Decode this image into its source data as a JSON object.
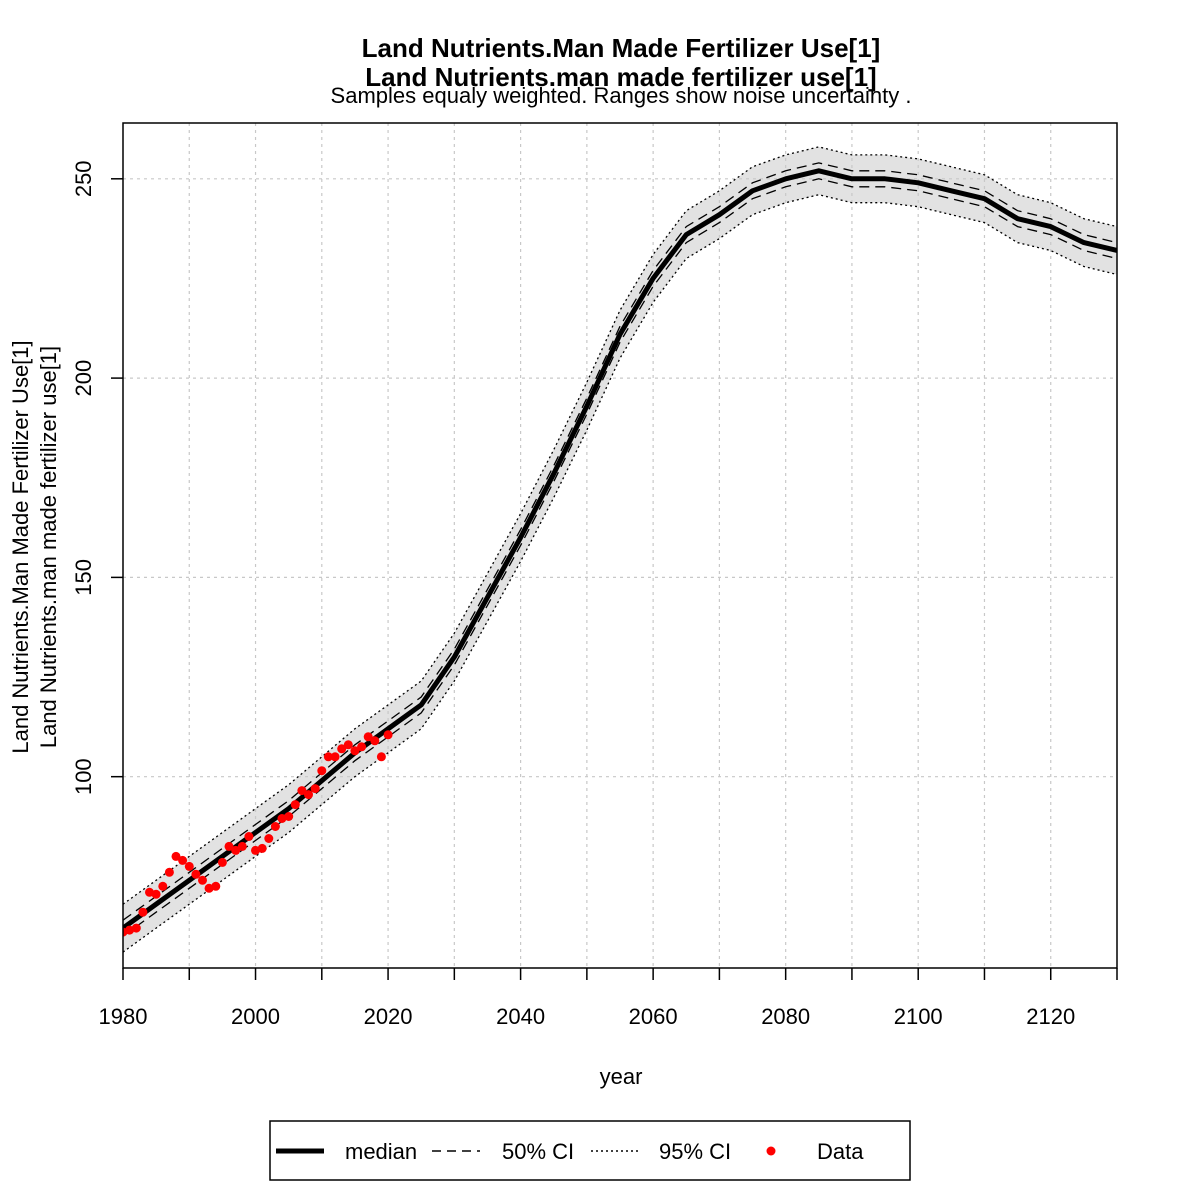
{
  "chart_data": {
    "type": "line",
    "title_line1": "Land Nutrients.Man Made Fertilizer Use[1]",
    "title_line2": "Land Nutrients.man made fertilizer use[1]",
    "subtitle": "Samples equaly weighted. Ranges show  noise uncertainty .",
    "xlabel": "year",
    "ylabel_line1": "Land Nutrients.Man Made Fertilizer Use[1]",
    "ylabel_line2": "Land Nutrients.man made fertilizer use[1]",
    "xlim": [
      1980,
      2130
    ],
    "ylim": [
      52,
      264
    ],
    "x_ticks": [
      1980,
      2000,
      2020,
      2040,
      2060,
      2080,
      2100,
      2120
    ],
    "x_minor_ticks": [
      1990,
      2010,
      2030,
      2050,
      2070,
      2090,
      2110,
      2130
    ],
    "y_ticks": [
      100,
      150,
      200,
      250
    ],
    "grid": true,
    "legend": {
      "placement": "bottom",
      "items": [
        {
          "label": "median",
          "style": "solid-thick"
        },
        {
          "label": "50% CI",
          "style": "dashed"
        },
        {
          "label": "95% CI",
          "style": "dotted"
        },
        {
          "label": "Data",
          "style": "point",
          "color": "#ff0000"
        }
      ]
    },
    "colors": {
      "band": "#e2e2e2",
      "line": "#000000",
      "data": "#ff0000",
      "grid": "#c8c8c8"
    },
    "series": [
      {
        "name": "median",
        "x": [
          1980,
          1985,
          1990,
          1995,
          2000,
          2005,
          2010,
          2015,
          2020,
          2025,
          2030,
          2035,
          2040,
          2045,
          2050,
          2055,
          2060,
          2065,
          2070,
          2075,
          2080,
          2085,
          2090,
          2095,
          2100,
          2105,
          2110,
          2115,
          2120,
          2125,
          2130
        ],
        "y": [
          62,
          68,
          74,
          80,
          86,
          92,
          99,
          106,
          112,
          118,
          130,
          145,
          160,
          176,
          193,
          211,
          225,
          236,
          241,
          247,
          250,
          252,
          250,
          250,
          249,
          247,
          245,
          240,
          238,
          234,
          232
        ]
      },
      {
        "name": "50% CI",
        "x": [
          1980,
          1985,
          1990,
          1995,
          2000,
          2005,
          2010,
          2015,
          2020,
          2025,
          2030,
          2035,
          2040,
          2045,
          2050,
          2055,
          2060,
          2065,
          2070,
          2075,
          2080,
          2085,
          2090,
          2095,
          2100,
          2105,
          2110,
          2115,
          2120,
          2125,
          2130
        ],
        "lower": [
          60,
          66,
          72,
          78,
          84,
          90,
          97,
          104,
          110,
          116,
          128,
          143,
          158,
          174,
          191,
          209,
          223,
          234,
          239,
          245,
          248,
          250,
          248,
          248,
          247,
          245,
          243,
          238,
          236,
          232,
          230
        ],
        "upper": [
          64,
          70,
          76,
          82,
          88,
          94,
          101,
          108,
          114,
          120,
          132,
          147,
          162,
          178,
          195,
          213,
          227,
          238,
          243,
          249,
          252,
          254,
          252,
          252,
          251,
          249,
          247,
          242,
          240,
          236,
          234
        ]
      },
      {
        "name": "95% CI",
        "x": [
          1980,
          1985,
          1990,
          1995,
          2000,
          2005,
          2010,
          2015,
          2020,
          2025,
          2030,
          2035,
          2040,
          2045,
          2050,
          2055,
          2060,
          2065,
          2070,
          2075,
          2080,
          2085,
          2090,
          2095,
          2100,
          2105,
          2110,
          2115,
          2120,
          2125,
          2130
        ],
        "lower": [
          56,
          62,
          68,
          74,
          80,
          86,
          93,
          100,
          106,
          112,
          124,
          139,
          154,
          170,
          187,
          205,
          219,
          230,
          235,
          241,
          244,
          246,
          244,
          244,
          243,
          241,
          239,
          234,
          232,
          228,
          226
        ],
        "upper": [
          68,
          74,
          80,
          86,
          92,
          98,
          105,
          112,
          118,
          124,
          136,
          151,
          166,
          182,
          199,
          217,
          231,
          242,
          247,
          253,
          256,
          258,
          256,
          256,
          255,
          253,
          251,
          246,
          244,
          240,
          238
        ]
      },
      {
        "name": "Data",
        "x": [
          1980,
          1981,
          1982,
          1983,
          1984,
          1985,
          1986,
          1987,
          1988,
          1989,
          1990,
          1991,
          1992,
          1993,
          1994,
          1995,
          1996,
          1997,
          1998,
          1999,
          2000,
          2001,
          2002,
          2003,
          2004,
          2005,
          2006,
          2007,
          2008,
          2009,
          2010,
          2011,
          2012,
          2013,
          2014,
          2015,
          2016,
          2017,
          2018,
          2019,
          2020
        ],
        "y": [
          61,
          61.5,
          62,
          66,
          71,
          70.5,
          72.5,
          76,
          80,
          79,
          77.5,
          75.5,
          74,
          72,
          72.5,
          78.5,
          82.5,
          81.5,
          82.5,
          85,
          81.5,
          82,
          84.5,
          87.5,
          89.5,
          90,
          93,
          96.5,
          95.5,
          97,
          101.5,
          105,
          105,
          107,
          108,
          106.5,
          107.5,
          110,
          109,
          105,
          110.5
        ]
      }
    ]
  }
}
